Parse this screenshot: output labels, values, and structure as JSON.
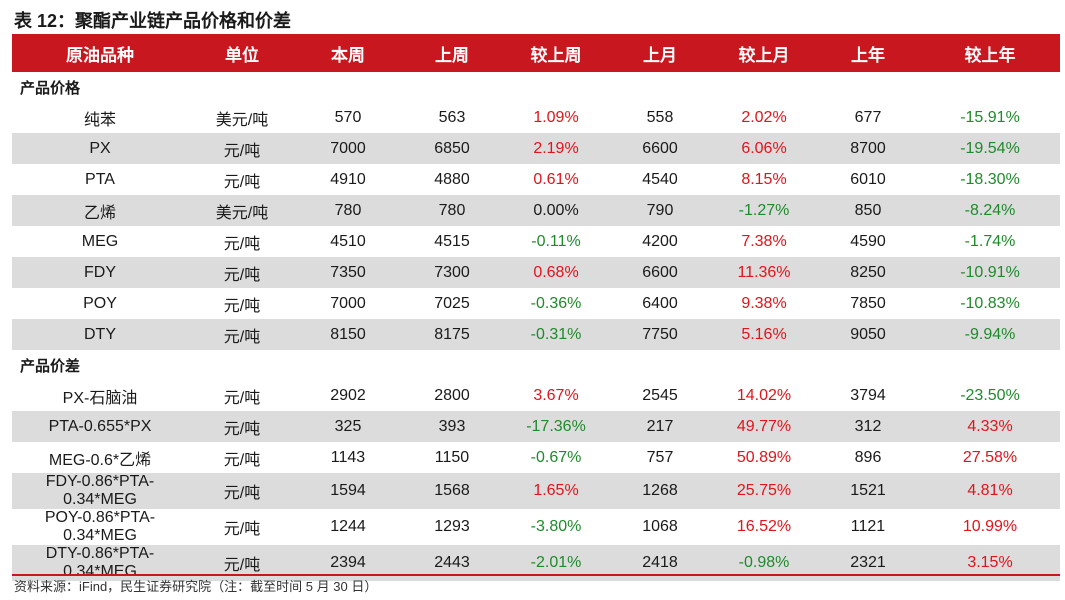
{
  "title": "表 12：聚酯产业链产品价格和价差",
  "headers": [
    "原油品种",
    "单位",
    "本周",
    "上周",
    "较上周",
    "上月",
    "较上月",
    "上年",
    "较上年"
  ],
  "sections": [
    {
      "label": "产品价格",
      "rows": [
        [
          "纯苯",
          "美元/吨",
          "570",
          "563",
          "1.09%",
          "558",
          "2.02%",
          "677",
          "-15.91%"
        ],
        [
          "PX",
          "元/吨",
          "7000",
          "6850",
          "2.19%",
          "6600",
          "6.06%",
          "8700",
          "-19.54%"
        ],
        [
          "PTA",
          "元/吨",
          "4910",
          "4880",
          "0.61%",
          "4540",
          "8.15%",
          "6010",
          "-18.30%"
        ],
        [
          "乙烯",
          "美元/吨",
          "780",
          "780",
          "0.00%",
          "790",
          "-1.27%",
          "850",
          "-8.24%"
        ],
        [
          "MEG",
          "元/吨",
          "4510",
          "4515",
          "-0.11%",
          "4200",
          "7.38%",
          "4590",
          "-1.74%"
        ],
        [
          "FDY",
          "元/吨",
          "7350",
          "7300",
          "0.68%",
          "6600",
          "11.36%",
          "8250",
          "-10.91%"
        ],
        [
          "POY",
          "元/吨",
          "7000",
          "7025",
          "-0.36%",
          "6400",
          "9.38%",
          "7850",
          "-10.83%"
        ],
        [
          "DTY",
          "元/吨",
          "8150",
          "8175",
          "-0.31%",
          "7750",
          "5.16%",
          "9050",
          "-9.94%"
        ]
      ]
    },
    {
      "label": "产品价差",
      "rows": [
        [
          "PX-石脑油",
          "元/吨",
          "2902",
          "2800",
          "3.67%",
          "2545",
          "14.02%",
          "3794",
          "-23.50%"
        ],
        [
          "PTA-0.655*PX",
          "元/吨",
          "325",
          "393",
          "-17.36%",
          "217",
          "49.77%",
          "312",
          "4.33%"
        ],
        [
          "MEG-0.6*乙烯",
          "元/吨",
          "1143",
          "1150",
          "-0.67%",
          "757",
          "50.89%",
          "896",
          "27.58%"
        ],
        [
          "FDY-0.86*PTA-0.34*MEG",
          "元/吨",
          "1594",
          "1568",
          "1.65%",
          "1268",
          "25.75%",
          "1521",
          "4.81%"
        ],
        [
          "POY-0.86*PTA-0.34*MEG",
          "元/吨",
          "1244",
          "1293",
          "-3.80%",
          "1068",
          "16.52%",
          "1121",
          "10.99%"
        ],
        [
          "DTY-0.86*PTA-0.34*MEG",
          "元/吨",
          "2394",
          "2443",
          "-2.01%",
          "2418",
          "-0.98%",
          "2321",
          "3.15%"
        ]
      ]
    }
  ],
  "colors": {
    "header_bg": "#c8171e",
    "positive": "#e0141b",
    "negative": "#1f8a2b",
    "shade": "#dcdcdc"
  },
  "source": "资料来源：iFind，民生证券研究院（注：截至时间 5 月 30 日）"
}
